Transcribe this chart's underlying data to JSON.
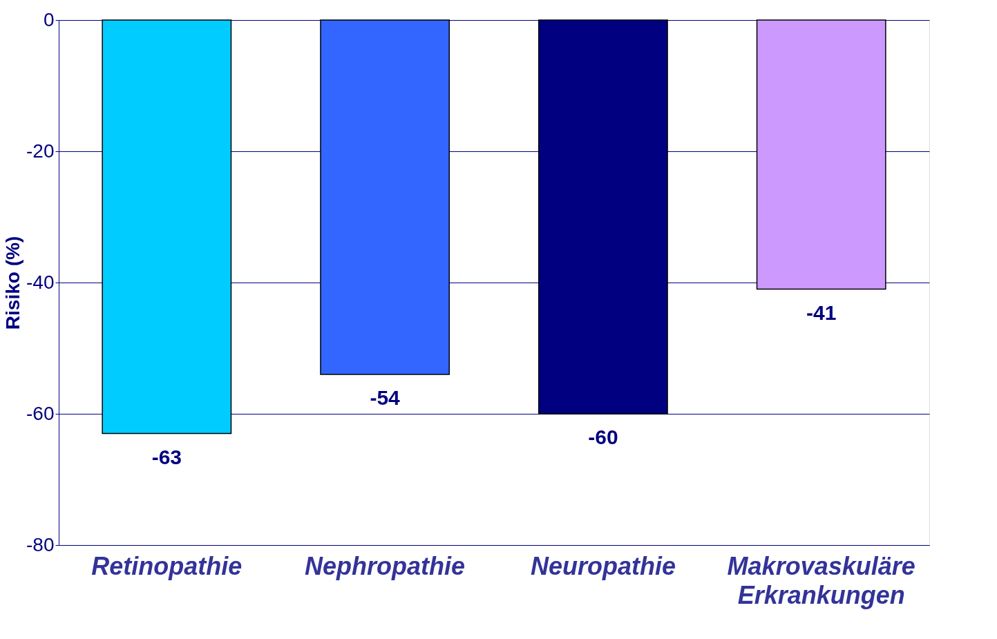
{
  "chart_data": {
    "type": "bar",
    "ylabel": "Risiko (%)",
    "categories": [
      "Retinopathie",
      "Nephropathie",
      "Neuropathie",
      "Makrovaskuläre Erkrankungen"
    ],
    "values": [
      -63,
      -54,
      -60,
      -41
    ],
    "colors": [
      "#00ccff",
      "#3366ff",
      "#000080",
      "#cc99ff"
    ],
    "ylim": [
      -80,
      0
    ],
    "yticks": [
      0,
      -20,
      -40,
      -60,
      -80
    ],
    "grid": "y",
    "data_labels": true
  }
}
